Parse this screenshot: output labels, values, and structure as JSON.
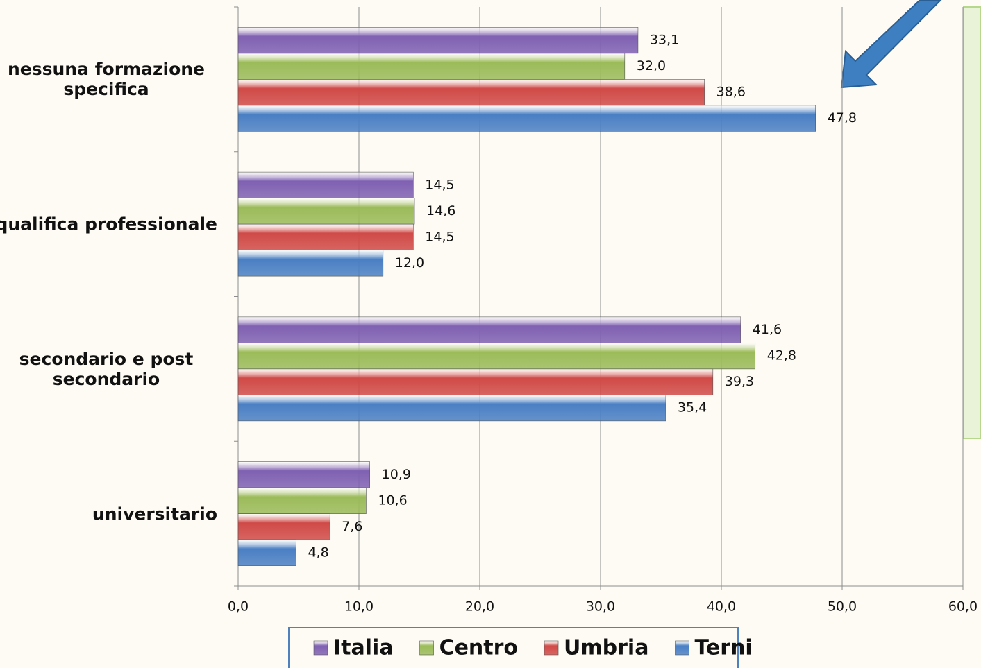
{
  "chart_data": {
    "type": "hbar",
    "categories": [
      "nessuna formazione specifica",
      "qualifica professionale",
      "secondario e post secondario",
      "universitario"
    ],
    "series": [
      {
        "name": "Italia",
        "color": "#7f60b2",
        "values": [
          33.1,
          14.5,
          41.6,
          10.9
        ],
        "value_labels": [
          "33,1",
          "14,5",
          "41,6",
          "10,9"
        ]
      },
      {
        "name": "Centro",
        "color": "#9bbb59",
        "values": [
          32.0,
          14.6,
          42.8,
          10.6
        ],
        "value_labels": [
          "32,0",
          "14,6",
          "42,8",
          "10,6"
        ]
      },
      {
        "name": "Umbria",
        "color": "#d04a47",
        "values": [
          38.6,
          14.5,
          39.3,
          7.6
        ],
        "value_labels": [
          "38,6",
          "14,5",
          "39,3",
          "7,6"
        ]
      },
      {
        "name": "Terni",
        "color": "#4a7fc4",
        "values": [
          47.8,
          12.0,
          35.4,
          4.8
        ],
        "value_labels": [
          "47,8",
          "12,0",
          "35,4",
          "4,8"
        ]
      }
    ],
    "xlim": [
      0,
      60
    ],
    "xticks": [
      {
        "value": 0,
        "label": "0,0"
      },
      {
        "value": 10,
        "label": "10,0"
      },
      {
        "value": 20,
        "label": "20,0"
      },
      {
        "value": 30,
        "label": "30,0"
      },
      {
        "value": 40,
        "label": "40,0"
      },
      {
        "value": 50,
        "label": "50,0"
      },
      {
        "value": 60,
        "label": "60,0"
      }
    ],
    "grid": true,
    "legend": "bottom"
  }
}
